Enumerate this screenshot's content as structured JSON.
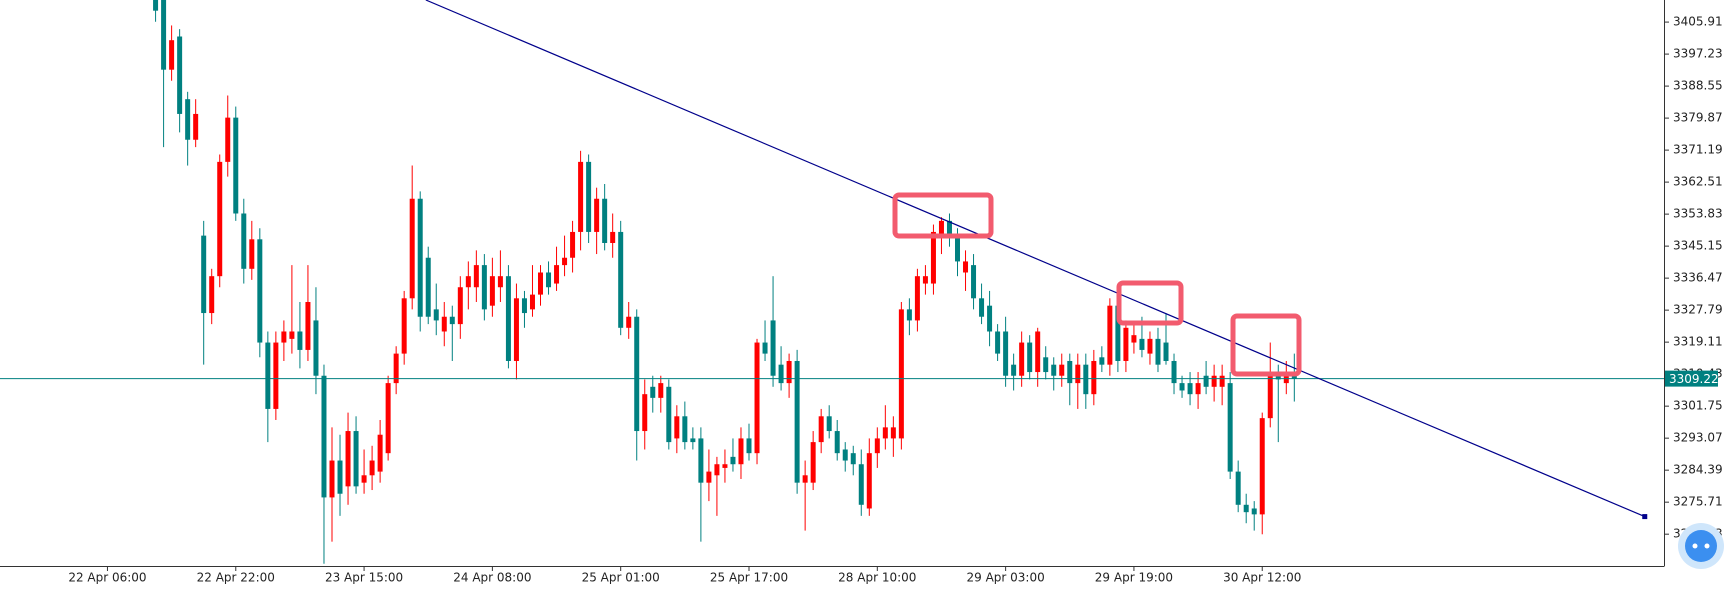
{
  "chart_data": {
    "type": "candlestick",
    "up_color": "#ff0000",
    "down_color": "#008080",
    "ylim": [
      3258.4,
      3411.9
    ],
    "yticks": [
      3267.03,
      3275.71,
      3284.39,
      3293.07,
      3301.75,
      3310.43,
      3319.11,
      3327.79,
      3336.47,
      3345.15,
      3353.83,
      3362.51,
      3371.19,
      3379.87,
      3388.55,
      3397.23,
      3405.91
    ],
    "xlim": [
      -19.4,
      188.1
    ],
    "xticks": [
      {
        "value": -6,
        "label": "22 Apr 06:00"
      },
      {
        "value": 10,
        "label": "22 Apr 22:00"
      },
      {
        "value": 26,
        "label": "23 Apr 15:00"
      },
      {
        "value": 42,
        "label": "24 Apr 08:00"
      },
      {
        "value": 58,
        "label": "25 Apr 01:00"
      },
      {
        "value": 74,
        "label": "25 Apr 17:00"
      },
      {
        "value": 90,
        "label": "28 Apr 10:00"
      },
      {
        "value": 106,
        "label": "29 Apr 03:00"
      },
      {
        "value": 122,
        "label": "29 Apr 19:00"
      },
      {
        "value": 138,
        "label": "30 Apr 12:00"
      }
    ],
    "current_price": 3309.22,
    "current_price_color": "#008080",
    "trendline": {
      "x": [
        33.7,
        185.7
      ],
      "y": [
        3411.9,
        3271.8
      ],
      "color": "#00008b"
    },
    "ohlc": [
      [
        3416,
        3418,
        3406,
        3409
      ],
      [
        3412,
        3415,
        3372,
        3393
      ],
      [
        3393,
        3405,
        3390,
        3401
      ],
      [
        3402,
        3404,
        3376,
        3381
      ],
      [
        3385,
        3387,
        3367,
        3374
      ],
      [
        3374,
        3385,
        3372,
        3381
      ],
      [
        3348,
        3352,
        3313,
        3327
      ],
      [
        3327,
        3339,
        3324,
        3337
      ],
      [
        3337,
        3370,
        3334,
        3368
      ],
      [
        3368,
        3386,
        3364,
        3380
      ],
      [
        3380,
        3383,
        3352,
        3354
      ],
      [
        3354,
        3358,
        3335,
        3339
      ],
      [
        3339,
        3352,
        3336,
        3347
      ],
      [
        3347,
        3350,
        3315,
        3319
      ],
      [
        3319,
        3322,
        3292,
        3301
      ],
      [
        3301,
        3322,
        3298,
        3319
      ],
      [
        3319,
        3325,
        3314,
        3322
      ],
      [
        3320,
        3340,
        3316,
        3322
      ],
      [
        3322,
        3330,
        3312,
        3317
      ],
      [
        3317,
        3340,
        3314,
        3330
      ],
      [
        3325,
        3334,
        3305,
        3310
      ],
      [
        3310,
        3313,
        3259,
        3277
      ],
      [
        3277,
        3296,
        3265,
        3287
      ],
      [
        3287,
        3294,
        3272,
        3278
      ],
      [
        3280,
        3300,
        3275,
        3295
      ],
      [
        3295,
        3299,
        3278,
        3280
      ],
      [
        3281,
        3290,
        3278,
        3283
      ],
      [
        3283,
        3291,
        3279,
        3287
      ],
      [
        3284,
        3298,
        3281,
        3294
      ],
      [
        3289,
        3310,
        3287,
        3308
      ],
      [
        3308,
        3318,
        3305,
        3316
      ],
      [
        3316,
        3333,
        3313,
        3331
      ],
      [
        3331,
        3367,
        3328,
        3358
      ],
      [
        3358,
        3360,
        3322,
        3326
      ],
      [
        3342,
        3345,
        3324,
        3326
      ],
      [
        3328,
        3335,
        3321,
        3325
      ],
      [
        3322,
        3330,
        3318,
        3326
      ],
      [
        3326,
        3329,
        3314,
        3324
      ],
      [
        3324,
        3337,
        3320,
        3334
      ],
      [
        3334,
        3341,
        3328,
        3337
      ],
      [
        3334,
        3344,
        3330,
        3340
      ],
      [
        3340,
        3343,
        3325,
        3328
      ],
      [
        3329,
        3342,
        3326,
        3337
      ],
      [
        3334,
        3344,
        3330,
        3337
      ],
      [
        3337,
        3340,
        3312,
        3314
      ],
      [
        3314,
        3335,
        3309,
        3331
      ],
      [
        3331,
        3333,
        3323,
        3327
      ],
      [
        3328,
        3340,
        3326,
        3332
      ],
      [
        3332,
        3340,
        3329,
        3338
      ],
      [
        3338,
        3341,
        3332,
        3334
      ],
      [
        3335,
        3345,
        3333,
        3340
      ],
      [
        3340,
        3348,
        3337,
        3342
      ],
      [
        3342,
        3352,
        3338,
        3349
      ],
      [
        3349,
        3371,
        3344,
        3368
      ],
      [
        3368,
        3370,
        3346,
        3349
      ],
      [
        3349,
        3361,
        3343,
        3358
      ],
      [
        3358,
        3362,
        3344,
        3346
      ],
      [
        3346,
        3354,
        3342,
        3349
      ],
      [
        3349,
        3352,
        3321,
        3323
      ],
      [
        3323,
        3330,
        3320,
        3326
      ],
      [
        3326,
        3328,
        3287,
        3295
      ],
      [
        3295,
        3309,
        3290,
        3305
      ],
      [
        3307,
        3310,
        3300,
        3304
      ],
      [
        3304,
        3310,
        3300,
        3308
      ],
      [
        3307,
        3309,
        3290,
        3292
      ],
      [
        3293,
        3302,
        3289,
        3299
      ],
      [
        3299,
        3303,
        3290,
        3292
      ],
      [
        3293,
        3296,
        3290,
        3292
      ],
      [
        3293,
        3296,
        3265,
        3281
      ],
      [
        3281,
        3290,
        3276,
        3284
      ],
      [
        3283,
        3288,
        3272,
        3286
      ],
      [
        3285,
        3290,
        3281,
        3286
      ],
      [
        3288,
        3293,
        3284,
        3286
      ],
      [
        3286,
        3296,
        3282,
        3293
      ],
      [
        3293,
        3297,
        3287,
        3289
      ],
      [
        3289,
        3320,
        3286,
        3319
      ],
      [
        3319,
        3325,
        3314,
        3316
      ],
      [
        3325,
        3337,
        3307,
        3310
      ],
      [
        3313,
        3318,
        3306,
        3308
      ],
      [
        3308,
        3316,
        3304,
        3314
      ],
      [
        3314,
        3317,
        3278,
        3281
      ],
      [
        3281,
        3287,
        3268,
        3283
      ],
      [
        3281,
        3295,
        3279,
        3292
      ],
      [
        3292,
        3301,
        3289,
        3299
      ],
      [
        3299,
        3302,
        3293,
        3295
      ],
      [
        3295,
        3298,
        3287,
        3289
      ],
      [
        3290,
        3292,
        3284,
        3287
      ],
      [
        3289,
        3291,
        3283,
        3286
      ],
      [
        3286,
        3290,
        3272,
        3275
      ],
      [
        3274,
        3293,
        3272,
        3289
      ],
      [
        3289,
        3296,
        3285,
        3293
      ],
      [
        3293,
        3302,
        3290,
        3296
      ],
      [
        3293,
        3299,
        3288,
        3296
      ],
      [
        3293,
        3330,
        3290,
        3328
      ],
      [
        3328,
        3331,
        3321,
        3325
      ],
      [
        3325,
        3339,
        3322,
        3337
      ],
      [
        3335,
        3340,
        3332,
        3337
      ],
      [
        3335,
        3351,
        3332,
        3349
      ],
      [
        3348,
        3353,
        3343,
        3352
      ],
      [
        3352,
        3354,
        3345,
        3348
      ],
      [
        3348,
        3350,
        3337,
        3341
      ],
      [
        3338,
        3344,
        3333,
        3341
      ],
      [
        3340,
        3343,
        3328,
        3331
      ],
      [
        3331,
        3335,
        3324,
        3326
      ],
      [
        3329,
        3333,
        3318,
        3322
      ],
      [
        3322,
        3324,
        3314,
        3316
      ],
      [
        3322,
        3326,
        3307,
        3310
      ],
      [
        3313,
        3316,
        3306,
        3310
      ],
      [
        3310,
        3322,
        3307,
        3319
      ],
      [
        3319,
        3321,
        3309,
        3311
      ],
      [
        3311,
        3323,
        3307,
        3322
      ],
      [
        3315,
        3318,
        3309,
        3311
      ],
      [
        3313,
        3315,
        3306,
        3310
      ],
      [
        3310,
        3316,
        3307,
        3313
      ],
      [
        3314,
        3316,
        3302,
        3308
      ],
      [
        3308,
        3316,
        3301,
        3313
      ],
      [
        3313,
        3316,
        3301,
        3305
      ],
      [
        3305,
        3317,
        3302,
        3314
      ],
      [
        3315,
        3318,
        3311,
        3313
      ],
      [
        3313,
        3331,
        3310,
        3329
      ],
      [
        3329,
        3332,
        3311,
        3314
      ],
      [
        3314,
        3325,
        3311,
        3323
      ],
      [
        3319,
        3324,
        3316,
        3321
      ],
      [
        3320,
        3326,
        3315,
        3317
      ],
      [
        3316,
        3322,
        3313,
        3320
      ],
      [
        3320,
        3323,
        3311,
        3313
      ],
      [
        3319,
        3327,
        3313,
        3314
      ],
      [
        3314,
        3316,
        3305,
        3308
      ],
      [
        3308,
        3310,
        3304,
        3306
      ],
      [
        3308,
        3311,
        3302,
        3305
      ],
      [
        3305,
        3311,
        3301,
        3308
      ],
      [
        3310,
        3314,
        3305,
        3307
      ],
      [
        3307,
        3313,
        3303,
        3310
      ],
      [
        3307,
        3313,
        3302,
        3310
      ],
      [
        3308,
        3311,
        3282,
        3284
      ],
      [
        3284,
        3287,
        3273,
        3275
      ],
      [
        3275,
        3278,
        3270,
        3273
      ],
      [
        3274,
        3276,
        3268,
        3272.4
      ],
      [
        3272.4,
        3300,
        3267,
        3298.5
      ],
      [
        3298.5,
        3319,
        3296,
        3310
      ],
      [
        3310,
        3313,
        3292,
        3309
      ],
      [
        3308,
        3314,
        3305,
        3310
      ],
      [
        3310,
        3316,
        3303,
        3309.22
      ]
    ]
  }
}
